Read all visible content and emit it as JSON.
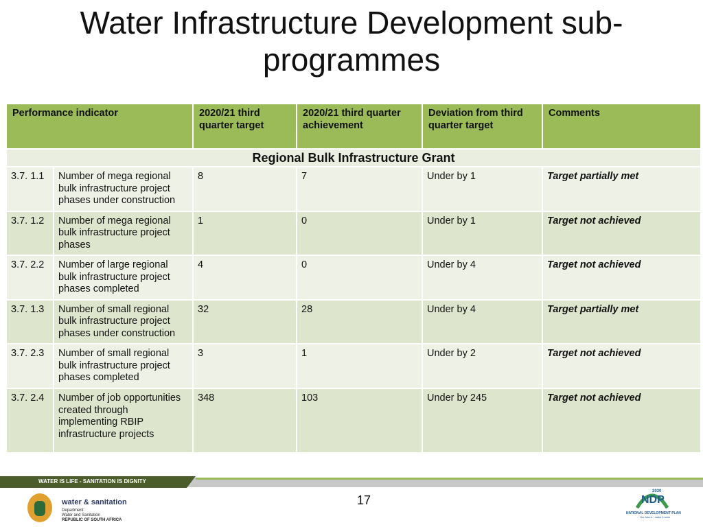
{
  "title": "Water Infrastructure Development sub-programmes",
  "table": {
    "header": [
      "Performance indicator",
      "2020/21 third quarter target",
      "2020/21 third quarter achievement",
      "Deviation from third quarter target",
      "Comments"
    ],
    "section": "Regional Bulk Infrastructure Grant",
    "rows": [
      [
        "3.7. 1.1",
        "Number of mega regional bulk infrastructure project phases under construction",
        8,
        7,
        "Under by 1",
        "Target partially met"
      ],
      [
        "3.7. 1.2",
        "Number of mega regional bulk infrastructure project phases",
        1,
        0,
        "Under by 1",
        "Target not achieved"
      ],
      [
        "3.7. 2.2",
        "Number of large regional bulk infrastructure project phases completed",
        4,
        0,
        "Under by 4",
        "Target not achieved"
      ],
      [
        "3.7. 1.3",
        "Number of small regional bulk infrastructure project phases under construction",
        32,
        28,
        "Under by 4",
        "Target partially met"
      ],
      [
        "3.7. 2.3",
        "Number of small regional bulk infrastructure project phases completed",
        3,
        1,
        "Under by 2",
        "Target not achieved"
      ],
      [
        "3.7. 2.4",
        "Number of job opportunities created through implementing RBIP infrastructure projects",
        348,
        103,
        "Under by 245",
        "Target not achieved"
      ]
    ]
  },
  "footer": {
    "slogan": "WATER IS LIFE - SANITATION IS DIGNITY",
    "brand": "water & sanitation",
    "department": [
      "Department:",
      "Water and Sanitation",
      "REPUBLIC OF SOUTH AFRICA"
    ],
    "page": 17,
    "ndp": {
      "year": "2030",
      "name": "NDP",
      "full": "NATIONAL DEVELOPMENT PLAN",
      "tagline": "Our future - make it work"
    }
  }
}
